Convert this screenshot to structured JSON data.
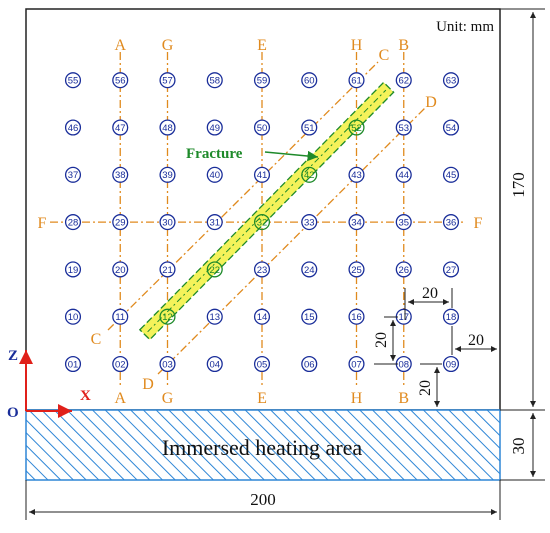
{
  "unit_label": "Unit: mm",
  "fracture_label": "Fracture",
  "heating_area_label": "Immersed heating area",
  "axes": {
    "z": "Z",
    "x": "X",
    "origin": "O"
  },
  "dimensions": {
    "width_total": "200",
    "height_total": "170",
    "heating_height": "30",
    "spacing_h": "20",
    "spacing_h2": "20",
    "spacing_v": "20",
    "offset_bottom": "20"
  },
  "lines": {
    "vertical": [
      {
        "label": "A"
      },
      {
        "label": "G"
      },
      {
        "label": "E"
      },
      {
        "label": "H"
      },
      {
        "label": "B"
      }
    ],
    "horizontal": {
      "label_left": "F",
      "label_right": "F"
    },
    "diagonal_c": {
      "label_start": "C",
      "label_end": "C"
    },
    "diagonal_d": {
      "label_start": "D",
      "label_end": "D"
    }
  },
  "points": [
    {
      "id": "01",
      "col": 0,
      "row": 0,
      "highlight": false
    },
    {
      "id": "02",
      "col": 1,
      "row": 0,
      "highlight": false
    },
    {
      "id": "03",
      "col": 2,
      "row": 0,
      "highlight": false
    },
    {
      "id": "04",
      "col": 3,
      "row": 0,
      "highlight": false
    },
    {
      "id": "05",
      "col": 4,
      "row": 0,
      "highlight": false
    },
    {
      "id": "06",
      "col": 5,
      "row": 0,
      "highlight": false
    },
    {
      "id": "07",
      "col": 6,
      "row": 0,
      "highlight": false
    },
    {
      "id": "08",
      "col": 7,
      "row": 0,
      "highlight": false
    },
    {
      "id": "09",
      "col": 8,
      "row": 0,
      "highlight": false
    },
    {
      "id": "10",
      "col": 0,
      "row": 1,
      "highlight": false
    },
    {
      "id": "11",
      "col": 1,
      "row": 1,
      "highlight": false
    },
    {
      "id": "12",
      "col": 2,
      "row": 1,
      "highlight": true
    },
    {
      "id": "13",
      "col": 3,
      "row": 1,
      "highlight": false
    },
    {
      "id": "14",
      "col": 4,
      "row": 1,
      "highlight": false
    },
    {
      "id": "15",
      "col": 5,
      "row": 1,
      "highlight": false
    },
    {
      "id": "16",
      "col": 6,
      "row": 1,
      "highlight": false
    },
    {
      "id": "17",
      "col": 7,
      "row": 1,
      "highlight": false
    },
    {
      "id": "18",
      "col": 8,
      "row": 1,
      "highlight": false
    },
    {
      "id": "19",
      "col": 0,
      "row": 2,
      "highlight": false
    },
    {
      "id": "20",
      "col": 1,
      "row": 2,
      "highlight": false
    },
    {
      "id": "21",
      "col": 2,
      "row": 2,
      "highlight": false
    },
    {
      "id": "22",
      "col": 3,
      "row": 2,
      "highlight": true
    },
    {
      "id": "23",
      "col": 4,
      "row": 2,
      "highlight": false
    },
    {
      "id": "24",
      "col": 5,
      "row": 2,
      "highlight": false
    },
    {
      "id": "25",
      "col": 6,
      "row": 2,
      "highlight": false
    },
    {
      "id": "26",
      "col": 7,
      "row": 2,
      "highlight": false
    },
    {
      "id": "27",
      "col": 8,
      "row": 2,
      "highlight": false
    },
    {
      "id": "28",
      "col": 0,
      "row": 3,
      "highlight": false
    },
    {
      "id": "29",
      "col": 1,
      "row": 3,
      "highlight": false
    },
    {
      "id": "30",
      "col": 2,
      "row": 3,
      "highlight": false
    },
    {
      "id": "31",
      "col": 3,
      "row": 3,
      "highlight": false
    },
    {
      "id": "32",
      "col": 4,
      "row": 3,
      "highlight": true
    },
    {
      "id": "33",
      "col": 5,
      "row": 3,
      "highlight": false
    },
    {
      "id": "34",
      "col": 6,
      "row": 3,
      "highlight": false
    },
    {
      "id": "35",
      "col": 7,
      "row": 3,
      "highlight": false
    },
    {
      "id": "36",
      "col": 8,
      "row": 3,
      "highlight": false
    },
    {
      "id": "37",
      "col": 0,
      "row": 4,
      "highlight": false
    },
    {
      "id": "38",
      "col": 1,
      "row": 4,
      "highlight": false
    },
    {
      "id": "39",
      "col": 2,
      "row": 4,
      "highlight": false
    },
    {
      "id": "40",
      "col": 3,
      "row": 4,
      "highlight": false
    },
    {
      "id": "41",
      "col": 4,
      "row": 4,
      "highlight": false
    },
    {
      "id": "42",
      "col": 5,
      "row": 4,
      "highlight": true
    },
    {
      "id": "43",
      "col": 6,
      "row": 4,
      "highlight": false
    },
    {
      "id": "44",
      "col": 7,
      "row": 4,
      "highlight": false
    },
    {
      "id": "45",
      "col": 8,
      "row": 4,
      "highlight": false
    },
    {
      "id": "46",
      "col": 0,
      "row": 5,
      "highlight": false
    },
    {
      "id": "47",
      "col": 1,
      "row": 5,
      "highlight": false
    },
    {
      "id": "48",
      "col": 2,
      "row": 5,
      "highlight": false
    },
    {
      "id": "49",
      "col": 3,
      "row": 5,
      "highlight": false
    },
    {
      "id": "50",
      "col": 4,
      "row": 5,
      "highlight": false
    },
    {
      "id": "51",
      "col": 5,
      "row": 5,
      "highlight": false
    },
    {
      "id": "52",
      "col": 6,
      "row": 5,
      "highlight": true
    },
    {
      "id": "53",
      "col": 7,
      "row": 5,
      "highlight": false
    },
    {
      "id": "54",
      "col": 8,
      "row": 5,
      "highlight": false
    },
    {
      "id": "55",
      "col": 0,
      "row": 6,
      "highlight": false
    },
    {
      "id": "56",
      "col": 1,
      "row": 6,
      "highlight": false
    },
    {
      "id": "57",
      "col": 2,
      "row": 6,
      "highlight": false
    },
    {
      "id": "58",
      "col": 3,
      "row": 6,
      "highlight": false
    },
    {
      "id": "59",
      "col": 4,
      "row": 6,
      "highlight": false
    },
    {
      "id": "60",
      "col": 5,
      "row": 6,
      "highlight": false
    },
    {
      "id": "61",
      "col": 6,
      "row": 6,
      "highlight": false
    },
    {
      "id": "62",
      "col": 7,
      "row": 6,
      "highlight": false
    },
    {
      "id": "63",
      "col": 8,
      "row": 6,
      "highlight": false
    }
  ],
  "colors": {
    "orange": "#E08A1E",
    "blue": "#1A2E9A",
    "green": "#1E8A2A",
    "fracture_fill": "#F4F25A",
    "hatch": "#2E86D6",
    "red": "#E0201A",
    "dark": "#222222"
  }
}
